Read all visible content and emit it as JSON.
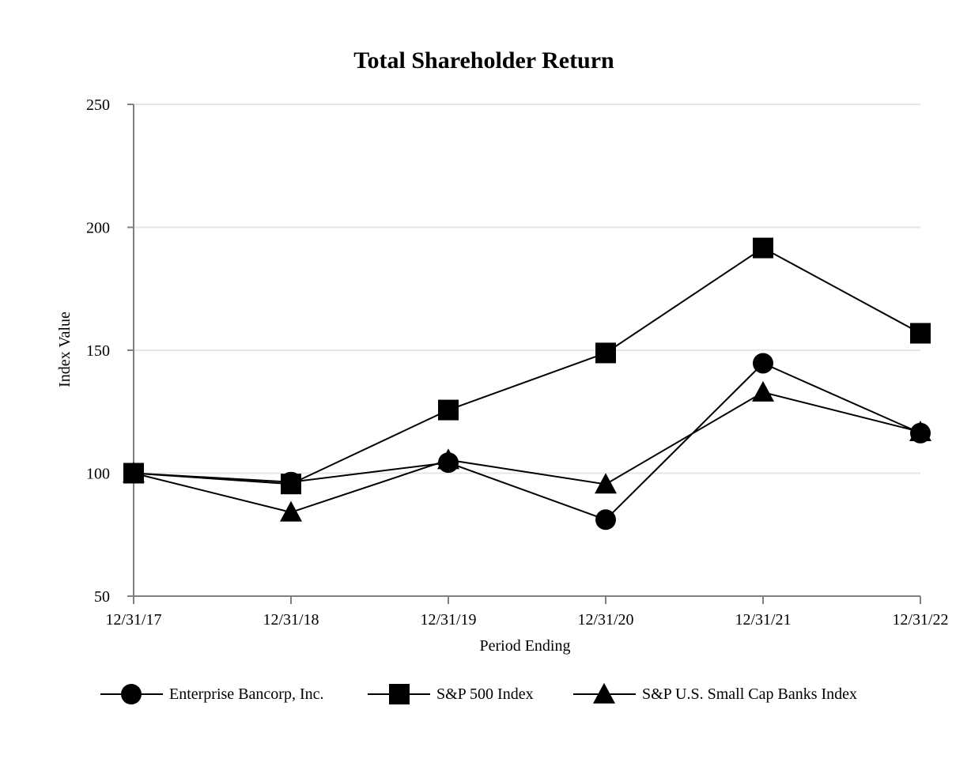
{
  "chart_data": {
    "type": "line",
    "title": "Total Shareholder Return",
    "xlabel": "Period Ending",
    "ylabel": "Index Value",
    "categories": [
      "12/31/17",
      "12/31/18",
      "12/31/19",
      "12/31/20",
      "12/31/21",
      "12/31/22"
    ],
    "yticks": [
      50,
      100,
      150,
      200,
      250
    ],
    "ylim": [
      50,
      250
    ],
    "grid": "horizontal",
    "legend_position": "bottom",
    "series": [
      {
        "name": "Enterprise Bancorp, Inc.",
        "marker": "circle",
        "values": [
          100,
          96.4,
          104.3,
          81.1,
          144.7,
          116.3
        ]
      },
      {
        "name": "S&P 500 Index",
        "marker": "square",
        "values": [
          100,
          95.6,
          125.7,
          148.9,
          191.6,
          156.9
        ]
      },
      {
        "name": "S&P U.S. Small Cap Banks Index",
        "marker": "triangle",
        "values": [
          100,
          84.1,
          105.4,
          95.5,
          132.9,
          116.8
        ]
      }
    ],
    "colors": {
      "line": "#000000",
      "grid": "#e6e6e6",
      "axis": "#808080"
    }
  }
}
